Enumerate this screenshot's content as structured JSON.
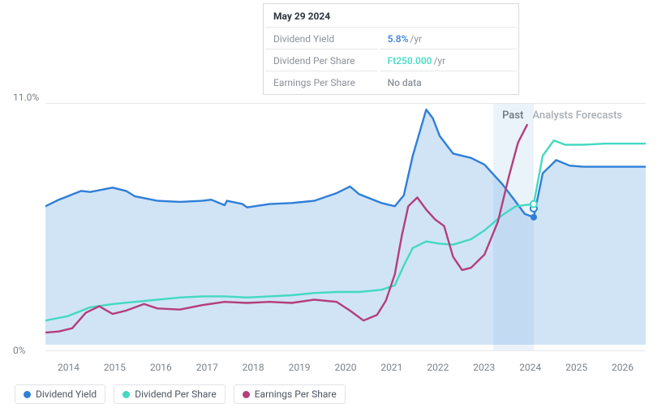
{
  "tooltip": {
    "date": "May 29 2024",
    "rows": [
      {
        "label": "Dividend Yield",
        "value": "5.8%",
        "unit": "/yr",
        "color": "#2f7ed8"
      },
      {
        "label": "Dividend Per Share",
        "value": "Ft250.000",
        "unit": "/yr",
        "color": "#43d9c1"
      },
      {
        "label": "Earnings Per Share",
        "value": "No data",
        "unit": "",
        "color": "#8b9198"
      }
    ]
  },
  "chart": {
    "type": "line-area",
    "background_color": "#ffffff",
    "grid_color": "#e6e8ea",
    "y_axis": {
      "top_label": "11.0%",
      "bottom_label": "0%",
      "min": 0,
      "max": 11.0,
      "label_color": "#7b8289",
      "label_fontsize": 12
    },
    "x_axis": {
      "years": [
        "2014",
        "2015",
        "2016",
        "2017",
        "2018",
        "2019",
        "2020",
        "2021",
        "2022",
        "2023",
        "2024",
        "2025",
        "2026"
      ],
      "start": 2013.5,
      "end": 2026.9,
      "label_color": "#7b8289",
      "label_fontsize": 12
    },
    "past_band": {
      "from": 2023.5,
      "to": 2024.4,
      "fill": "rgba(116,169,219,0.15)"
    },
    "region_labels": {
      "past": {
        "text": "Past",
        "x": 2023.95,
        "color": "#6d7680"
      },
      "forecast": {
        "text": "Analysts Forecasts",
        "x": 2025.35,
        "color": "#a6adb4"
      }
    },
    "series": [
      {
        "name": "Dividend Yield",
        "color": "#2f7ed8",
        "line_width": 2.4,
        "area_fill": "rgba(121,178,228,0.35)",
        "area_to_zero": true,
        "points": [
          [
            2013.5,
            6.3
          ],
          [
            2013.8,
            6.6
          ],
          [
            2014.3,
            7.0
          ],
          [
            2014.5,
            6.95
          ],
          [
            2015.0,
            7.15
          ],
          [
            2015.3,
            7.0
          ],
          [
            2015.5,
            6.75
          ],
          [
            2016.0,
            6.55
          ],
          [
            2016.5,
            6.5
          ],
          [
            2017.0,
            6.55
          ],
          [
            2017.2,
            6.6
          ],
          [
            2017.5,
            6.35
          ],
          [
            2017.55,
            6.55
          ],
          [
            2017.9,
            6.4
          ],
          [
            2018.0,
            6.25
          ],
          [
            2018.5,
            6.4
          ],
          [
            2019.0,
            6.45
          ],
          [
            2019.5,
            6.55
          ],
          [
            2020.0,
            6.9
          ],
          [
            2020.3,
            7.2
          ],
          [
            2020.5,
            6.85
          ],
          [
            2021.0,
            6.45
          ],
          [
            2021.3,
            6.3
          ],
          [
            2021.5,
            6.8
          ],
          [
            2021.7,
            8.6
          ],
          [
            2021.9,
            10.0
          ],
          [
            2022.0,
            10.7
          ],
          [
            2022.15,
            10.3
          ],
          [
            2022.3,
            9.5
          ],
          [
            2022.6,
            8.7
          ],
          [
            2023.0,
            8.5
          ],
          [
            2023.3,
            8.2
          ],
          [
            2023.7,
            7.3
          ],
          [
            2024.0,
            6.5
          ],
          [
            2024.2,
            5.95
          ],
          [
            2024.4,
            5.8
          ]
        ],
        "forecast_points": [
          [
            2024.4,
            5.8
          ],
          [
            2024.6,
            7.8
          ],
          [
            2024.9,
            8.4
          ],
          [
            2025.2,
            8.15
          ],
          [
            2025.5,
            8.1
          ],
          [
            2026.0,
            8.1
          ],
          [
            2026.5,
            8.1
          ],
          [
            2026.9,
            8.1
          ]
        ],
        "marker_end": {
          "x": 2024.4,
          "y": 5.8,
          "r": 4
        },
        "forecast_marker": {
          "x": 2024.4,
          "y": 6.2,
          "r": 4,
          "fill": "#ffffff",
          "stroke": "#2f7ed8"
        }
      },
      {
        "name": "Dividend Per Share",
        "color": "#43d9c1",
        "line_width": 2.4,
        "points": [
          [
            2013.5,
            1.1
          ],
          [
            2014.0,
            1.3
          ],
          [
            2014.5,
            1.7
          ],
          [
            2015.0,
            1.85
          ],
          [
            2015.5,
            1.95
          ],
          [
            2016.0,
            2.05
          ],
          [
            2016.5,
            2.15
          ],
          [
            2017.0,
            2.2
          ],
          [
            2017.5,
            2.2
          ],
          [
            2018.0,
            2.15
          ],
          [
            2018.5,
            2.2
          ],
          [
            2019.0,
            2.25
          ],
          [
            2019.5,
            2.35
          ],
          [
            2020.0,
            2.4
          ],
          [
            2020.5,
            2.4
          ],
          [
            2021.0,
            2.5
          ],
          [
            2021.3,
            2.7
          ],
          [
            2021.5,
            3.6
          ],
          [
            2021.7,
            4.4
          ],
          [
            2022.0,
            4.7
          ],
          [
            2022.3,
            4.6
          ],
          [
            2022.6,
            4.55
          ],
          [
            2023.0,
            4.8
          ],
          [
            2023.3,
            5.2
          ],
          [
            2023.7,
            5.9
          ],
          [
            2024.0,
            6.3
          ],
          [
            2024.4,
            6.4
          ]
        ],
        "forecast_points": [
          [
            2024.4,
            6.4
          ],
          [
            2024.6,
            8.6
          ],
          [
            2024.85,
            9.3
          ],
          [
            2025.1,
            9.1
          ],
          [
            2025.5,
            9.1
          ],
          [
            2026.0,
            9.15
          ],
          [
            2026.5,
            9.15
          ],
          [
            2026.9,
            9.15
          ]
        ],
        "forecast_marker": {
          "x": 2024.4,
          "y": 6.4,
          "r": 4,
          "fill": "#ffffff",
          "stroke": "#43d9c1"
        }
      },
      {
        "name": "Earnings Per Share",
        "color": "#b43e7b",
        "line_width": 2.4,
        "points": [
          [
            2013.5,
            0.55
          ],
          [
            2013.8,
            0.6
          ],
          [
            2014.1,
            0.75
          ],
          [
            2014.4,
            1.45
          ],
          [
            2014.7,
            1.75
          ],
          [
            2015.0,
            1.4
          ],
          [
            2015.3,
            1.55
          ],
          [
            2015.7,
            1.85
          ],
          [
            2016.0,
            1.65
          ],
          [
            2016.5,
            1.6
          ],
          [
            2017.0,
            1.8
          ],
          [
            2017.5,
            1.95
          ],
          [
            2018.0,
            1.9
          ],
          [
            2018.5,
            1.95
          ],
          [
            2019.0,
            1.9
          ],
          [
            2019.5,
            2.05
          ],
          [
            2020.0,
            1.95
          ],
          [
            2020.3,
            1.55
          ],
          [
            2020.6,
            1.1
          ],
          [
            2020.9,
            1.35
          ],
          [
            2021.1,
            2.0
          ],
          [
            2021.3,
            3.2
          ],
          [
            2021.45,
            4.9
          ],
          [
            2021.6,
            6.3
          ],
          [
            2021.8,
            6.7
          ],
          [
            2022.0,
            6.15
          ],
          [
            2022.2,
            5.7
          ],
          [
            2022.4,
            5.4
          ],
          [
            2022.6,
            4.0
          ],
          [
            2022.8,
            3.4
          ],
          [
            2023.0,
            3.5
          ],
          [
            2023.3,
            4.1
          ],
          [
            2023.6,
            5.6
          ],
          [
            2023.85,
            7.7
          ],
          [
            2024.05,
            9.2
          ],
          [
            2024.25,
            10.0
          ]
        ]
      }
    ],
    "legend": {
      "items": [
        {
          "label": "Dividend Yield",
          "color": "#2f7ed8"
        },
        {
          "label": "Dividend Per Share",
          "color": "#43d9c1"
        },
        {
          "label": "Earnings Per Share",
          "color": "#b43e7b"
        }
      ],
      "border_color": "#e1e3e6",
      "text_color": "#4e5560"
    }
  }
}
